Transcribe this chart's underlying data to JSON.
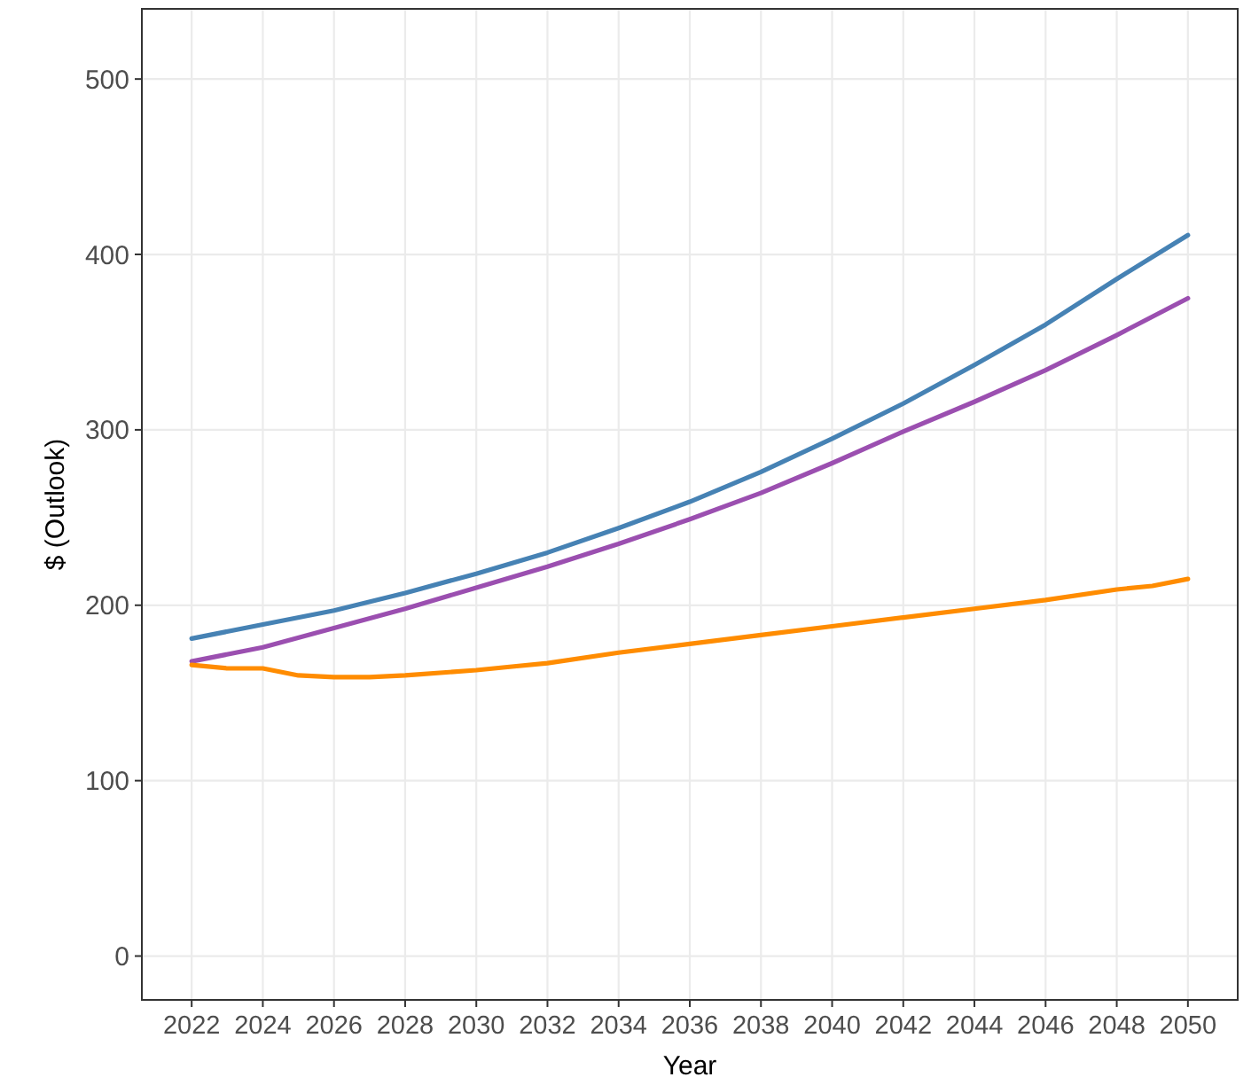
{
  "chart_data": {
    "type": "line",
    "xlabel": "Year",
    "ylabel": "$ (Outlook)",
    "xlim": [
      2020.6,
      2051.4
    ],
    "ylim": [
      -25,
      540
    ],
    "xticks": [
      2022,
      2024,
      2026,
      2028,
      2030,
      2032,
      2034,
      2036,
      2038,
      2040,
      2042,
      2044,
      2046,
      2048,
      2050
    ],
    "yticks": [
      0,
      100,
      200,
      300,
      400,
      500
    ],
    "grid": true,
    "line_style": "solid",
    "marker": "none",
    "series": [
      {
        "color": "#4682b4",
        "x": [
          2022,
          2024,
          2026,
          2028,
          2030,
          2032,
          2034,
          2036,
          2038,
          2040,
          2042,
          2044,
          2046,
          2048,
          2050
        ],
        "values": [
          181,
          189,
          197,
          207,
          218,
          230,
          244,
          259,
          276,
          295,
          315,
          337,
          360,
          386,
          411
        ]
      },
      {
        "color": "#9b4fb0",
        "x": [
          2022,
          2024,
          2026,
          2028,
          2030,
          2032,
          2034,
          2036,
          2038,
          2040,
          2042,
          2044,
          2046,
          2048,
          2050
        ],
        "values": [
          168,
          176,
          187,
          198,
          210,
          222,
          235,
          249,
          264,
          281,
          299,
          316,
          334,
          354,
          375
        ]
      },
      {
        "color": "#ff8c00",
        "x": [
          2022,
          2023,
          2024,
          2025,
          2026,
          2027,
          2028,
          2030,
          2031,
          2032,
          2034,
          2036,
          2038,
          2040,
          2042,
          2044,
          2046,
          2048,
          2049,
          2050
        ],
        "values": [
          166,
          164,
          164,
          160,
          159,
          159,
          160,
          163,
          165,
          167,
          173,
          178,
          183,
          188,
          193,
          198,
          203,
          209,
          211,
          215
        ]
      }
    ]
  }
}
